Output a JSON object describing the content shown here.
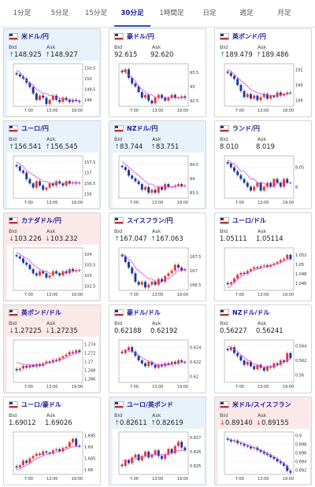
{
  "tabs": [
    {
      "label": "1分足",
      "active": false
    },
    {
      "label": "5分足",
      "active": false
    },
    {
      "label": "15分足",
      "active": false
    },
    {
      "label": "30分足",
      "active": true
    },
    {
      "label": "1時間足",
      "active": false
    },
    {
      "label": "日足",
      "active": false
    },
    {
      "label": "週足",
      "active": false
    },
    {
      "label": "月足",
      "active": false
    }
  ],
  "labels": {
    "bid": "Bid",
    "ask": "Ask"
  },
  "colors": {
    "up": "#2e8b57",
    "down": "#d32f2f",
    "candle_up": "#e53935",
    "candle_down": "#1e3a9a",
    "ma": "#d946ef",
    "accent": "#2a54c8"
  },
  "cards": [
    {
      "pair": "米ドル/円",
      "bg": "blue",
      "dir": "up",
      "bid": "148.925",
      "ask": "148.927",
      "xticks": [
        "7:00",
        "13:00",
        "19:00"
      ],
      "yticks": [
        "150.5",
        "150",
        "149.5",
        "149"
      ],
      "ylim": [
        148.7,
        150.7
      ],
      "series": [
        150.2,
        150.1,
        150.0,
        149.8,
        149.6,
        149.3,
        149.0,
        149.2,
        149.1,
        148.8,
        149.0,
        149.2,
        149.0,
        148.9,
        149.1,
        149.0,
        148.9,
        149.0,
        148.95,
        148.9
      ],
      "ma": [
        150.4,
        150.3,
        150.1,
        149.9,
        149.8,
        149.7,
        149.5,
        149.4,
        149.3,
        149.3,
        149.2,
        149.2,
        149.1,
        149.1,
        149.0,
        149.0,
        149.0,
        149.0,
        148.95,
        148.95
      ]
    },
    {
      "pair": "豪ドル/円",
      "bg": "white",
      "dir": "none",
      "bid": "92.615",
      "ask": "92.620",
      "xticks": [
        "7:00",
        "13:00",
        "19:00"
      ],
      "yticks": [
        "93.5",
        "93",
        "92.5"
      ],
      "ylim": [
        92.3,
        93.8
      ],
      "series": [
        93.5,
        93.6,
        93.3,
        93.1,
        93.0,
        92.8,
        92.6,
        92.7,
        92.5,
        92.4,
        92.6,
        92.7,
        92.6,
        92.5,
        92.6,
        92.7,
        92.6,
        92.6,
        92.65,
        92.6
      ],
      "ma": [
        93.6,
        93.5,
        93.4,
        93.3,
        93.2,
        93.0,
        92.9,
        92.8,
        92.7,
        92.7,
        92.6,
        92.6,
        92.6,
        92.6,
        92.6,
        92.6,
        92.6,
        92.6,
        92.6,
        92.6
      ]
    },
    {
      "pair": "英ポンド/円",
      "bg": "white",
      "dir": "up",
      "bid": "189.479",
      "ask": "189.486",
      "xticks": [
        "7:00",
        "13:00",
        "19:00"
      ],
      "yticks": [
        "191",
        "190",
        "189"
      ],
      "ylim": [
        188.6,
        191.4
      ],
      "series": [
        190.8,
        190.6,
        190.4,
        190.0,
        189.6,
        189.2,
        189.4,
        189.1,
        189.3,
        189.0,
        189.2,
        189.4,
        189.1,
        189.3,
        189.2,
        189.5,
        189.3,
        189.4,
        189.5,
        189.48
      ],
      "ma": [
        191.0,
        190.9,
        190.7,
        190.5,
        190.3,
        190.1,
        189.9,
        189.7,
        189.6,
        189.5,
        189.4,
        189.4,
        189.3,
        189.3,
        189.3,
        189.3,
        189.35,
        189.4,
        189.4,
        189.45
      ]
    },
    {
      "pair": "ユーロ/円",
      "bg": "blue",
      "dir": "up",
      "bid": "156.541",
      "ask": "156.545",
      "xticks": [
        "7:00",
        "13:00",
        "19:00"
      ],
      "yticks": [
        "157.5",
        "157",
        "156.5",
        "156"
      ],
      "ylim": [
        155.8,
        157.8
      ],
      "series": [
        157.3,
        157.1,
        157.0,
        156.7,
        156.5,
        156.3,
        156.6,
        156.4,
        156.2,
        156.3,
        156.5,
        156.4,
        156.6,
        156.5,
        156.4,
        156.6,
        156.5,
        156.55,
        156.5,
        156.54
      ],
      "ma": [
        157.5,
        157.4,
        157.3,
        157.1,
        157.0,
        156.9,
        156.8,
        156.7,
        156.6,
        156.6,
        156.5,
        156.5,
        156.5,
        156.5,
        156.5,
        156.5,
        156.5,
        156.52,
        156.52,
        156.53
      ]
    },
    {
      "pair": "NZドル/円",
      "bg": "blue",
      "dir": "up",
      "bid": "83.744",
      "ask": "83.751",
      "xticks": [
        "7:00",
        "13:00",
        "19:00"
      ],
      "yticks": [
        "84.5",
        "84",
        "83.5"
      ],
      "ylim": [
        83.3,
        84.8
      ],
      "series": [
        84.4,
        84.3,
        84.1,
        84.0,
        83.9,
        83.8,
        83.6,
        83.7,
        83.5,
        83.6,
        83.5,
        83.7,
        83.6,
        83.8,
        83.7,
        83.7,
        83.75,
        83.8,
        83.72,
        83.74
      ],
      "ma": [
        84.6,
        84.5,
        84.4,
        84.3,
        84.2,
        84.1,
        84.0,
        83.9,
        83.8,
        83.8,
        83.7,
        83.7,
        83.7,
        83.7,
        83.7,
        83.7,
        83.72,
        83.73,
        83.73,
        83.74
      ]
    },
    {
      "pair": "ランド/円",
      "bg": "white",
      "dir": "none",
      "bid": "8.010",
      "ask": "8.019",
      "xticks": [
        "7:00",
        "13:00",
        "19:00"
      ],
      "yticks": [
        "8.05",
        "8"
      ],
      "ylim": [
        7.97,
        8.08
      ],
      "series": [
        8.06,
        8.05,
        8.04,
        8.03,
        8.02,
        8.01,
        8.0,
        7.99,
        8.0,
        8.01,
        7.99,
        8.0,
        8.01,
        8.0,
        8.02,
        8.01,
        8.0,
        8.02,
        8.01,
        8.01
      ],
      "ma": [
        8.07,
        8.06,
        8.06,
        8.05,
        8.04,
        8.04,
        8.03,
        8.02,
        8.02,
        8.01,
        8.01,
        8.01,
        8.0,
        8.0,
        8.0,
        8.01,
        8.01,
        8.01,
        8.01,
        8.01
      ]
    },
    {
      "pair": "カナダドル/円",
      "bg": "pink",
      "dir": "down",
      "bid": "103.226",
      "ask": "103.232",
      "xticks": [
        "7:00",
        "13:00",
        "19:00"
      ],
      "yticks": [
        "104",
        "103.5",
        "103",
        "102.5"
      ],
      "ylim": [
        102.3,
        104.3
      ],
      "series": [
        103.9,
        103.8,
        103.6,
        103.5,
        103.3,
        103.1,
        103.0,
        103.2,
        103.1,
        102.9,
        103.0,
        103.2,
        103.1,
        103.0,
        103.2,
        103.1,
        103.3,
        103.2,
        103.25,
        103.23
      ],
      "ma": [
        104.1,
        104.0,
        103.9,
        103.8,
        103.7,
        103.5,
        103.4,
        103.3,
        103.2,
        103.2,
        103.1,
        103.1,
        103.1,
        103.1,
        103.1,
        103.15,
        103.2,
        103.2,
        103.2,
        103.23
      ]
    },
    {
      "pair": "スイスフラン/円",
      "bg": "white",
      "dir": "up",
      "bid": "167.047",
      "ask": "167.063",
      "xticks": [
        "7:00",
        "13:00",
        "19:00"
      ],
      "yticks": [
        "167.5",
        "167",
        "166.5"
      ],
      "ylim": [
        166.3,
        167.8
      ],
      "series": [
        167.5,
        167.3,
        167.1,
        166.9,
        166.6,
        166.5,
        166.6,
        166.4,
        166.5,
        166.6,
        166.5,
        166.7,
        166.6,
        166.8,
        166.9,
        167.0,
        167.2,
        167.1,
        167.0,
        167.05
      ],
      "ma": [
        167.6,
        167.5,
        167.4,
        167.3,
        167.1,
        167.0,
        166.9,
        166.8,
        166.7,
        166.7,
        166.6,
        166.6,
        166.6,
        166.7,
        166.7,
        166.8,
        166.9,
        167.0,
        167.0,
        167.05
      ]
    },
    {
      "pair": "ユーロ/ドル",
      "bg": "white",
      "dir": "none",
      "bid": "1.05111",
      "ask": "1.05114",
      "xticks": [
        "7:00",
        "13:00",
        "19:00"
      ],
      "yticks": [
        "1.052",
        "1.05",
        "1.048",
        "1.046"
      ],
      "ylim": [
        1.0445,
        1.0535
      ],
      "series": [
        1.0458,
        1.0462,
        1.047,
        1.0478,
        1.0482,
        1.048,
        1.0486,
        1.049,
        1.0494,
        1.0492,
        1.0496,
        1.0498,
        1.0495,
        1.0499,
        1.0502,
        1.0505,
        1.0509,
        1.0512,
        1.052,
        1.0511
      ],
      "ma": [
        1.045,
        1.0455,
        1.0462,
        1.0468,
        1.0474,
        1.0478,
        1.0482,
        1.0485,
        1.0488,
        1.049,
        1.0492,
        1.0494,
        1.0495,
        1.0497,
        1.0499,
        1.0501,
        1.0504,
        1.0507,
        1.051,
        1.0511
      ]
    },
    {
      "pair": "英ポンド/ドル",
      "bg": "pink",
      "dir": "down",
      "bid": "1.27225",
      "ask": "1.27235",
      "xticks": [
        "7:00",
        "13:00",
        "19:00"
      ],
      "yticks": [
        "1.274",
        "1.272",
        "1.27",
        "1.268",
        "1.266"
      ],
      "ylim": [
        1.2652,
        1.275
      ],
      "series": [
        1.268,
        1.2684,
        1.269,
        1.2686,
        1.2692,
        1.2688,
        1.2694,
        1.269,
        1.2696,
        1.27,
        1.2698,
        1.2704,
        1.2702,
        1.2708,
        1.2712,
        1.2716,
        1.2722,
        1.272,
        1.2726,
        1.2722
      ],
      "ma": [
        1.2698,
        1.2696,
        1.2694,
        1.2693,
        1.2692,
        1.2692,
        1.2692,
        1.2693,
        1.2694,
        1.2696,
        1.2697,
        1.2699,
        1.2701,
        1.2703,
        1.2706,
        1.2709,
        1.2713,
        1.2716,
        1.272,
        1.2722
      ]
    },
    {
      "pair": "豪ドル/ドル",
      "bg": "white",
      "dir": "none",
      "bid": "0.62188",
      "ask": "0.62192",
      "xticks": [
        "7:00",
        "13:00",
        "19:00"
      ],
      "yticks": [
        "0.624",
        "0.622",
        "0.62"
      ],
      "ylim": [
        0.6192,
        0.625
      ],
      "series": [
        0.6232,
        0.6236,
        0.624,
        0.6234,
        0.6228,
        0.6222,
        0.6218,
        0.6214,
        0.622,
        0.6216,
        0.6212,
        0.6216,
        0.6214,
        0.6218,
        0.6216,
        0.622,
        0.6218,
        0.6222,
        0.622,
        0.6219
      ],
      "ma": [
        0.6236,
        0.6236,
        0.6235,
        0.6234,
        0.6232,
        0.6229,
        0.6226,
        0.6223,
        0.6221,
        0.6219,
        0.6217,
        0.6216,
        0.6216,
        0.6216,
        0.6216,
        0.6217,
        0.6217,
        0.6218,
        0.6219,
        0.6219
      ]
    },
    {
      "pair": "NZドル/ドル",
      "bg": "white",
      "dir": "none",
      "bid": "0.56227",
      "ask": "0.56241",
      "xticks": [
        "7:00",
        "13:00",
        "19:00"
      ],
      "yticks": [
        "0.564",
        "0.562",
        "0.56"
      ],
      "ylim": [
        0.559,
        0.5648
      ],
      "series": [
        0.5634,
        0.5638,
        0.563,
        0.5626,
        0.562,
        0.5614,
        0.5618,
        0.5612,
        0.5608,
        0.5614,
        0.561,
        0.5606,
        0.5612,
        0.561,
        0.5616,
        0.5614,
        0.562,
        0.5618,
        0.563,
        0.5623
      ],
      "ma": [
        0.564,
        0.5638,
        0.5635,
        0.5632,
        0.5628,
        0.5624,
        0.5621,
        0.5618,
        0.5615,
        0.5613,
        0.5612,
        0.5611,
        0.5611,
        0.5611,
        0.5612,
        0.5613,
        0.5615,
        0.5617,
        0.562,
        0.5622
      ]
    },
    {
      "pair": "ユーロ/豪ドル",
      "bg": "white",
      "dir": "none",
      "bid": "1.69012",
      "ask": "1.69026",
      "xticks": [
        "7:00",
        "13:00",
        "19:00"
      ],
      "yticks": [
        "1.695",
        "1.69",
        "1.685",
        "1.68"
      ],
      "ylim": [
        1.678,
        1.6965
      ],
      "series": [
        1.681,
        1.682,
        1.684,
        1.683,
        1.685,
        1.686,
        1.687,
        1.6865,
        1.688,
        1.6875,
        1.687,
        1.6885,
        1.689,
        1.688,
        1.6895,
        1.69,
        1.692,
        1.6935,
        1.6905,
        1.6901
      ],
      "ma": [
        1.68,
        1.6805,
        1.6812,
        1.682,
        1.683,
        1.684,
        1.6848,
        1.6855,
        1.6862,
        1.6867,
        1.687,
        1.6874,
        1.6878,
        1.6882,
        1.6886,
        1.689,
        1.6895,
        1.69,
        1.6902,
        1.6902
      ]
    },
    {
      "pair": "ユーロ/英ポンド",
      "bg": "blue",
      "dir": "up",
      "bid": "0.82611",
      "ask": "0.82619",
      "xticks": [
        "7:00",
        "13:00",
        "19:00"
      ],
      "yticks": [
        "0.827",
        "0.826",
        "0.825"
      ],
      "ylim": [
        0.8244,
        0.8274
      ],
      "series": [
        0.825,
        0.8254,
        0.8252,
        0.8256,
        0.8258,
        0.8254,
        0.8257,
        0.826,
        0.8256,
        0.8258,
        0.8261,
        0.8257,
        0.8255,
        0.8258,
        0.8262,
        0.8259,
        0.8264,
        0.8267,
        0.8263,
        0.8261
      ],
      "ma": [
        0.8254,
        0.8254,
        0.8254,
        0.8255,
        0.8255,
        0.8256,
        0.8256,
        0.8257,
        0.8257,
        0.8258,
        0.8258,
        0.8258,
        0.8258,
        0.8258,
        0.8259,
        0.8259,
        0.826,
        0.8261,
        0.8261,
        0.8261
      ]
    },
    {
      "pair": "米ドル/スイスフラン",
      "bg": "pink",
      "dir": "down",
      "bid": "0.89140",
      "ask": "0.89155",
      "xticks": [
        "7:00",
        "13:00",
        "19:00"
      ],
      "yticks": [
        "0.9",
        "0.898",
        "0.896",
        "0.894",
        "0.892"
      ],
      "ylim": [
        0.891,
        0.9008
      ],
      "series": [
        0.899,
        0.8986,
        0.8988,
        0.8982,
        0.898,
        0.8976,
        0.8974,
        0.897,
        0.8972,
        0.8966,
        0.8962,
        0.8958,
        0.8955,
        0.895,
        0.8946,
        0.894,
        0.8936,
        0.893,
        0.8918,
        0.8914
      ],
      "ma": [
        0.8992,
        0.899,
        0.8988,
        0.8986,
        0.8984,
        0.8981,
        0.8978,
        0.8975,
        0.8972,
        0.8969,
        0.8966,
        0.8963,
        0.8959,
        0.8955,
        0.8951,
        0.8946,
        0.8941,
        0.8935,
        0.8927,
        0.892
      ]
    }
  ]
}
